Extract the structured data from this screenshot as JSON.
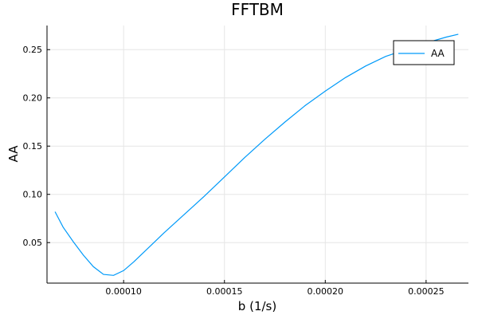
{
  "chart_data": {
    "type": "line",
    "title": "FFTBM",
    "xlabel": "b (1/s)",
    "ylabel": "AA",
    "xlim": [
      6.2e-05,
      0.000271
    ],
    "ylim": [
      0.008,
      0.275
    ],
    "xticks": [
      0.0001,
      0.00015,
      0.0002,
      0.00025
    ],
    "xtick_labels": [
      "0.00010",
      "0.00015",
      "0.00020",
      "0.00025"
    ],
    "yticks": [
      0.05,
      0.1,
      0.15,
      0.2,
      0.25
    ],
    "ytick_labels": [
      "0.05",
      "0.10",
      "0.15",
      "0.20",
      "0.25"
    ],
    "grid": true,
    "legend_position": "top-right",
    "series": [
      {
        "name": "AA",
        "color": "#009af9",
        "x": [
          6.6e-05,
          7e-05,
          7.5e-05,
          8e-05,
          8.5e-05,
          9e-05,
          9.5e-05,
          0.0001,
          0.000105,
          0.00011,
          0.00012,
          0.00013,
          0.00014,
          0.00015,
          0.00016,
          0.00017,
          0.00018,
          0.00019,
          0.0002,
          0.00021,
          0.00022,
          0.00023,
          0.00024,
          0.00025,
          0.00026,
          0.000266
        ],
        "y": [
          0.082,
          0.066,
          0.051,
          0.037,
          0.025,
          0.017,
          0.016,
          0.021,
          0.03,
          0.04,
          0.06,
          0.079,
          0.098,
          0.118,
          0.138,
          0.157,
          0.175,
          0.192,
          0.207,
          0.221,
          0.233,
          0.243,
          0.25,
          0.257,
          0.263,
          0.266
        ]
      }
    ]
  }
}
